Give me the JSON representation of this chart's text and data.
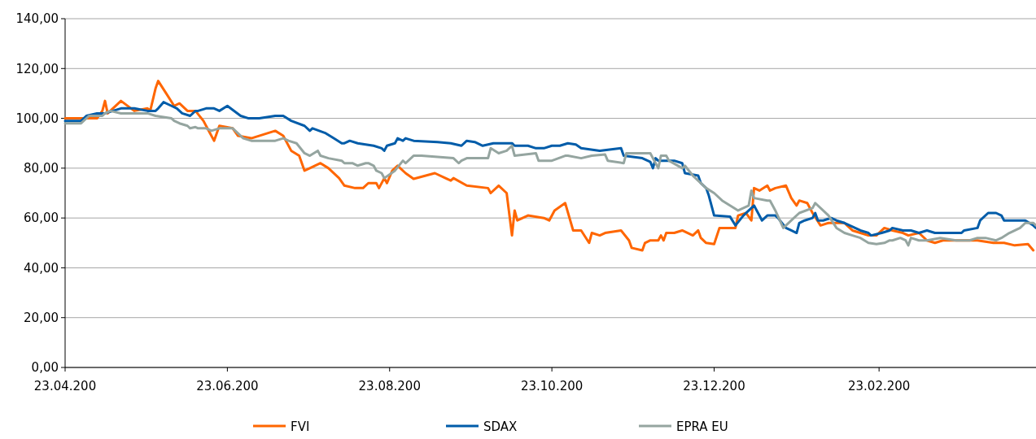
{
  "chart_data": {
    "type": "line",
    "xlim": [
      "2007-04-23",
      "2008-04-22"
    ],
    "xticks": [
      {
        "value": "2007-04-23",
        "label": "23.04.200"
      },
      {
        "value": "2007-06-23",
        "label": "23.06.200"
      },
      {
        "value": "2007-08-23",
        "label": "23.08.200"
      },
      {
        "value": "2007-10-23",
        "label": "23.10.200"
      },
      {
        "value": "2007-12-23",
        "label": "23.12.200"
      },
      {
        "value": "2008-02-23",
        "label": "23.02.200"
      }
    ],
    "ylim": [
      0,
      140
    ],
    "yticks": [
      {
        "value": 0,
        "label": "0,00"
      },
      {
        "value": 20,
        "label": "20,00"
      },
      {
        "value": 40,
        "label": "40,00"
      },
      {
        "value": 60,
        "label": "60,00"
      },
      {
        "value": 80,
        "label": "80,00"
      },
      {
        "value": 100,
        "label": "100,00"
      },
      {
        "value": 120,
        "label": "120,00"
      },
      {
        "value": 140,
        "label": "140,00"
      }
    ],
    "grid": "y",
    "legend": "bottom",
    "marker": "none",
    "line_style": "solid",
    "series": [
      {
        "name": "FVI",
        "color": "#ff6600",
        "x": [
          "2007-04-23",
          "2007-05-05",
          "2007-05-07",
          "2007-05-08",
          "2007-05-09",
          "2007-05-14",
          "2007-05-19",
          "2007-05-24",
          "2007-05-25",
          "2007-05-27",
          "2007-05-28",
          "2007-05-31",
          "2007-06-03",
          "2007-06-05",
          "2007-06-08",
          "2007-06-11",
          "2007-06-14",
          "2007-06-18",
          "2007-06-20",
          "2007-06-25",
          "2007-06-27",
          "2007-07-02",
          "2007-07-11",
          "2007-07-14",
          "2007-07-17",
          "2007-07-20",
          "2007-07-22",
          "2007-07-24",
          "2007-07-28",
          "2007-07-31",
          "2007-08-04",
          "2007-08-06",
          "2007-08-10",
          "2007-08-13",
          "2007-08-15",
          "2007-08-18",
          "2007-08-19",
          "2007-08-21",
          "2007-08-22",
          "2007-08-24",
          "2007-08-26",
          "2007-08-29",
          "2007-09-01",
          "2007-09-09",
          "2007-09-13",
          "2007-09-15",
          "2007-09-16",
          "2007-09-21",
          "2007-09-29",
          "2007-09-30",
          "2007-10-03",
          "2007-10-06",
          "2007-10-08",
          "2007-10-09",
          "2007-10-10",
          "2007-10-14",
          "2007-10-20",
          "2007-10-22",
          "2007-10-24",
          "2007-10-28",
          "2007-10-31",
          "2007-11-03",
          "2007-11-06",
          "2007-11-07",
          "2007-11-10",
          "2007-11-12",
          "2007-11-18",
          "2007-11-21",
          "2007-11-22",
          "2007-11-26",
          "2007-11-27",
          "2007-11-29",
          "2007-12-02",
          "2007-12-03",
          "2007-12-04",
          "2007-12-05",
          "2007-12-08",
          "2007-12-11",
          "2007-12-15",
          "2007-12-17",
          "2007-12-18",
          "2007-12-20",
          "2007-12-23",
          "2007-12-25",
          "2007-12-29",
          "2007-12-31",
          "2008-01-01",
          "2008-01-04",
          "2008-01-06",
          "2008-01-07",
          "2008-01-09",
          "2008-01-12",
          "2008-01-13",
          "2008-01-15",
          "2008-01-19",
          "2008-01-21",
          "2008-01-23",
          "2008-01-24",
          "2008-01-27",
          "2008-01-29",
          "2008-02-01",
          "2008-02-04",
          "2008-02-10",
          "2008-02-11",
          "2008-02-13",
          "2008-02-16",
          "2008-02-19",
          "2008-02-22",
          "2008-02-25",
          "2008-02-28",
          "2008-03-03",
          "2008-03-05",
          "2008-03-09",
          "2008-03-12",
          "2008-03-15",
          "2008-03-18",
          "2008-03-25",
          "2008-03-31",
          "2008-04-06",
          "2008-04-10",
          "2008-04-14",
          "2008-04-19",
          "2008-04-21"
        ],
        "values": [
          100,
          100,
          103,
          107,
          102,
          107,
          103,
          104,
          103,
          112,
          115,
          110,
          105,
          106,
          103,
          103,
          99,
          91,
          97,
          96,
          93,
          92,
          95,
          93,
          87,
          85,
          79,
          80,
          82,
          80,
          76,
          73,
          72,
          72,
          74,
          74,
          72,
          76,
          74,
          79,
          81,
          78,
          75.7,
          78,
          76,
          75,
          76,
          73,
          72,
          70,
          73,
          70,
          53,
          63,
          59,
          61,
          60,
          59,
          63,
          66,
          55,
          55,
          50,
          54,
          53,
          54,
          55,
          51,
          48,
          47,
          50,
          51,
          51,
          53,
          51,
          54,
          54,
          55,
          53,
          55,
          52,
          50,
          49.5,
          56,
          56,
          56,
          61,
          62,
          59,
          72,
          71,
          73,
          71,
          72,
          73,
          68,
          65,
          67,
          66,
          62,
          57,
          58,
          58,
          57,
          55,
          54,
          53,
          53,
          56,
          55,
          54,
          53,
          54,
          51,
          50,
          51,
          51,
          51,
          50,
          50,
          49,
          49.5,
          47
        ]
      },
      {
        "name": "SDAX",
        "color": "#005ca9",
        "x": [
          "2007-04-23",
          "2007-04-29",
          "2007-05-01",
          "2007-05-05",
          "2007-05-08",
          "2007-05-11",
          "2007-05-14",
          "2007-05-19",
          "2007-05-24",
          "2007-05-27",
          "2007-05-28",
          "2007-05-30",
          "2007-06-02",
          "2007-06-04",
          "2007-06-06",
          "2007-06-09",
          "2007-06-11",
          "2007-06-12",
          "2007-06-15",
          "2007-06-18",
          "2007-06-20",
          "2007-06-23",
          "2007-06-28",
          "2007-07-01",
          "2007-07-05",
          "2007-07-11",
          "2007-07-14",
          "2007-07-17",
          "2007-07-22",
          "2007-07-24",
          "2007-07-25",
          "2007-07-30",
          "2007-08-02",
          "2007-08-05",
          "2007-08-06",
          "2007-08-08",
          "2007-08-11",
          "2007-08-17",
          "2007-08-20",
          "2007-08-21",
          "2007-08-22",
          "2007-08-25",
          "2007-08-26",
          "2007-08-28",
          "2007-08-29",
          "2007-09-01",
          "2007-09-10",
          "2007-09-15",
          "2007-09-19",
          "2007-09-21",
          "2007-09-24",
          "2007-09-27",
          "2007-10-01",
          "2007-10-05",
          "2007-10-08",
          "2007-10-09",
          "2007-10-14",
          "2007-10-17",
          "2007-10-20",
          "2007-10-23",
          "2007-10-26",
          "2007-10-29",
          "2007-11-01",
          "2007-11-03",
          "2007-11-10",
          "2007-11-18",
          "2007-11-19",
          "2007-11-26",
          "2007-11-29",
          "2007-11-30",
          "2007-12-01",
          "2007-12-02",
          "2007-12-08",
          "2007-12-11",
          "2007-12-12",
          "2007-12-17",
          "2007-12-18",
          "2007-12-20",
          "2007-12-21",
          "2007-12-23",
          "2007-12-29",
          "2007-12-31",
          "2008-01-03",
          "2008-01-06",
          "2008-01-07",
          "2008-01-09",
          "2008-01-10",
          "2008-01-12",
          "2008-01-15",
          "2008-01-16",
          "2008-01-19",
          "2008-01-21",
          "2008-01-23",
          "2008-01-24",
          "2008-01-26",
          "2008-01-29",
          "2008-01-30",
          "2008-01-31",
          "2008-02-02",
          "2008-02-05",
          "2008-02-07",
          "2008-02-10",
          "2008-02-16",
          "2008-02-19",
          "2008-02-20",
          "2008-02-24",
          "2008-02-27",
          "2008-02-28",
          "2008-03-03",
          "2008-03-06",
          "2008-03-09",
          "2008-03-12",
          "2008-03-15",
          "2008-03-25",
          "2008-03-26",
          "2008-03-31",
          "2008-04-01",
          "2008-04-04",
          "2008-04-07",
          "2008-04-09",
          "2008-04-10",
          "2008-04-18",
          "2008-04-21",
          "2008-04-22"
        ],
        "values": [
          99,
          99,
          101,
          102,
          102,
          103,
          104,
          104,
          103,
          103,
          104,
          106.5,
          105,
          104,
          102,
          101,
          103,
          103,
          104,
          104,
          103,
          105,
          101,
          100,
          100,
          101,
          101,
          99,
          97,
          95,
          96,
          94,
          92,
          90,
          90,
          91,
          90,
          89,
          88,
          87,
          89,
          90,
          92,
          91,
          92,
          91,
          90.5,
          90,
          89,
          91,
          90.5,
          89,
          90,
          90,
          90,
          89,
          89,
          88,
          88,
          89,
          89,
          90,
          89.5,
          88,
          87,
          88,
          85,
          84,
          82.5,
          80,
          84,
          83,
          83,
          82,
          78,
          77,
          74,
          72,
          69,
          61,
          60.5,
          57,
          61,
          64,
          65,
          61,
          59,
          61,
          61,
          60,
          56,
          55,
          54,
          58,
          59,
          60,
          62,
          59,
          59,
          60,
          59,
          58,
          55,
          54,
          53,
          54,
          55,
          56,
          55,
          55,
          54,
          55,
          54,
          54,
          55,
          56,
          59,
          62,
          62,
          61,
          59,
          59,
          57,
          56
        ]
      },
      {
        "name": "EPRA EU",
        "color": "#95a5a0",
        "x": [
          "2007-04-23",
          "2007-04-29",
          "2007-05-02",
          "2007-05-07",
          "2007-05-08",
          "2007-05-10",
          "2007-05-14",
          "2007-05-20",
          "2007-05-24",
          "2007-05-27",
          "2007-05-30",
          "2007-06-02",
          "2007-06-03",
          "2007-06-05",
          "2007-06-08",
          "2007-06-09",
          "2007-06-11",
          "2007-06-12",
          "2007-06-15",
          "2007-06-17",
          "2007-06-20",
          "2007-06-25",
          "2007-06-29",
          "2007-07-02",
          "2007-07-11",
          "2007-07-14",
          "2007-07-16",
          "2007-07-19",
          "2007-07-22",
          "2007-07-24",
          "2007-07-27",
          "2007-07-28",
          "2007-07-31",
          "2007-08-05",
          "2007-08-06",
          "2007-08-09",
          "2007-08-11",
          "2007-08-14",
          "2007-08-15",
          "2007-08-17",
          "2007-08-18",
          "2007-08-20",
          "2007-08-21",
          "2007-08-25",
          "2007-08-28",
          "2007-08-29",
          "2007-09-01",
          "2007-09-04",
          "2007-09-10",
          "2007-09-16",
          "2007-09-18",
          "2007-09-19",
          "2007-09-21",
          "2007-09-29",
          "2007-09-30",
          "2007-10-03",
          "2007-10-06",
          "2007-10-08",
          "2007-10-09",
          "2007-10-17",
          "2007-10-18",
          "2007-10-23",
          "2007-10-28",
          "2007-10-29",
          "2007-11-03",
          "2007-11-07",
          "2007-11-12",
          "2007-11-13",
          "2007-11-19",
          "2007-11-20",
          "2007-11-26",
          "2007-11-29",
          "2007-12-02",
          "2007-12-03",
          "2007-12-05",
          "2007-12-06",
          "2007-12-11",
          "2007-12-12",
          "2007-12-15",
          "2007-12-20",
          "2007-12-23",
          "2007-12-26",
          "2008-01-01",
          "2008-01-05",
          "2008-01-06",
          "2008-01-07",
          "2008-01-12",
          "2008-01-13",
          "2008-01-15",
          "2008-01-18",
          "2008-01-21",
          "2008-01-24",
          "2008-01-29",
          "2008-01-30",
          "2008-02-04",
          "2008-02-07",
          "2008-02-10",
          "2008-02-13",
          "2008-02-16",
          "2008-02-19",
          "2008-02-22",
          "2008-02-25",
          "2008-02-27",
          "2008-02-28",
          "2008-03-02",
          "2008-03-04",
          "2008-03-05",
          "2008-03-06",
          "2008-03-09",
          "2008-03-12",
          "2008-03-17",
          "2008-03-23",
          "2008-03-28",
          "2008-03-31",
          "2008-04-03",
          "2008-04-07",
          "2008-04-09",
          "2008-04-12",
          "2008-04-16",
          "2008-04-18",
          "2008-04-21",
          "2008-04-22"
        ],
        "values": [
          98,
          98,
          101,
          101,
          102,
          103,
          102,
          102,
          102,
          101,
          100.5,
          100,
          99,
          98,
          97,
          96,
          96.5,
          96,
          96,
          95,
          96,
          96,
          92,
          91,
          91,
          92,
          91,
          90,
          86,
          85,
          87,
          85,
          84,
          83,
          82,
          82,
          81,
          82,
          82,
          81,
          79,
          78,
          76,
          79,
          83,
          82,
          85,
          85,
          84.5,
          84,
          82,
          83,
          84,
          84,
          88,
          86,
          87,
          89,
          85,
          86,
          83,
          83,
          85,
          85,
          84,
          85,
          85.5,
          83,
          82,
          86,
          86,
          86,
          80,
          85,
          85,
          83,
          80,
          81,
          77,
          72,
          70,
          67,
          63,
          65,
          71,
          68,
          67,
          67,
          63,
          56,
          59,
          62,
          64,
          66,
          61,
          56,
          54,
          53,
          52,
          50,
          49.5,
          50,
          51,
          51,
          52,
          51,
          49,
          52,
          51,
          51,
          52,
          51,
          51,
          52,
          52,
          51,
          52,
          54,
          56,
          58,
          58,
          57
        ]
      }
    ]
  }
}
